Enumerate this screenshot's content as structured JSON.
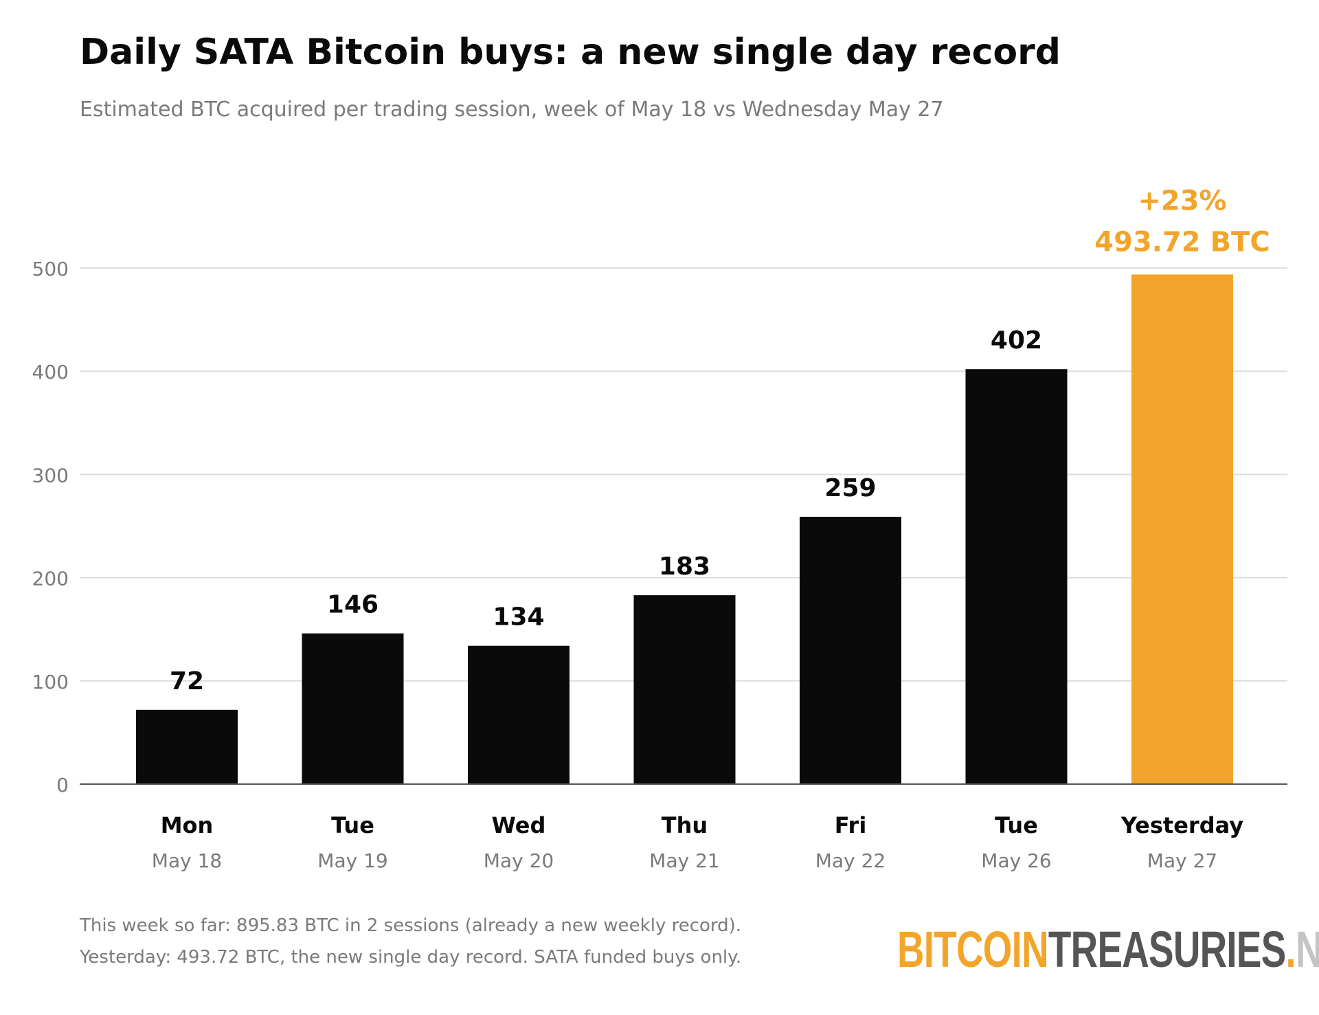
{
  "title": "Daily SATA Bitcoin buys: a new single day record",
  "subtitle": "Estimated BTC acquired per trading session, week of May 18 vs Wednesday May 27",
  "chart_data": {
    "type": "bar",
    "categories": [
      "Mon",
      "Tue",
      "Wed",
      "Thu",
      "Fri",
      "Tue",
      "Yesterday"
    ],
    "dates": [
      "May 18",
      "May 19",
      "May 20",
      "May 21",
      "May 22",
      "May 26",
      "May 27"
    ],
    "values": [
      72,
      146,
      134,
      183,
      259,
      402,
      493.72
    ],
    "value_labels": [
      "72",
      "146",
      "134",
      "183",
      "259",
      "402",
      "493.72 BTC"
    ],
    "highlight": {
      "index": 6,
      "change_label": "+23%",
      "color": "#f2a52a"
    },
    "bar_color": "#0a0a0a",
    "ylim": [
      0,
      500
    ],
    "yticks": [
      0,
      100,
      200,
      300,
      400,
      500
    ],
    "grid": true,
    "xlabel": "",
    "ylabel": ""
  },
  "footnotes": {
    "line1": "This week so far: 895.83 BTC in 2 sessions (already a new weekly record).",
    "line2": "Yesterday: 493.72 BTC, the new single day record. SATA funded buys only."
  },
  "logo": {
    "part1": "BITCOIN",
    "part2": "TREASURIES",
    "part3": ".",
    "part4": "NET"
  }
}
